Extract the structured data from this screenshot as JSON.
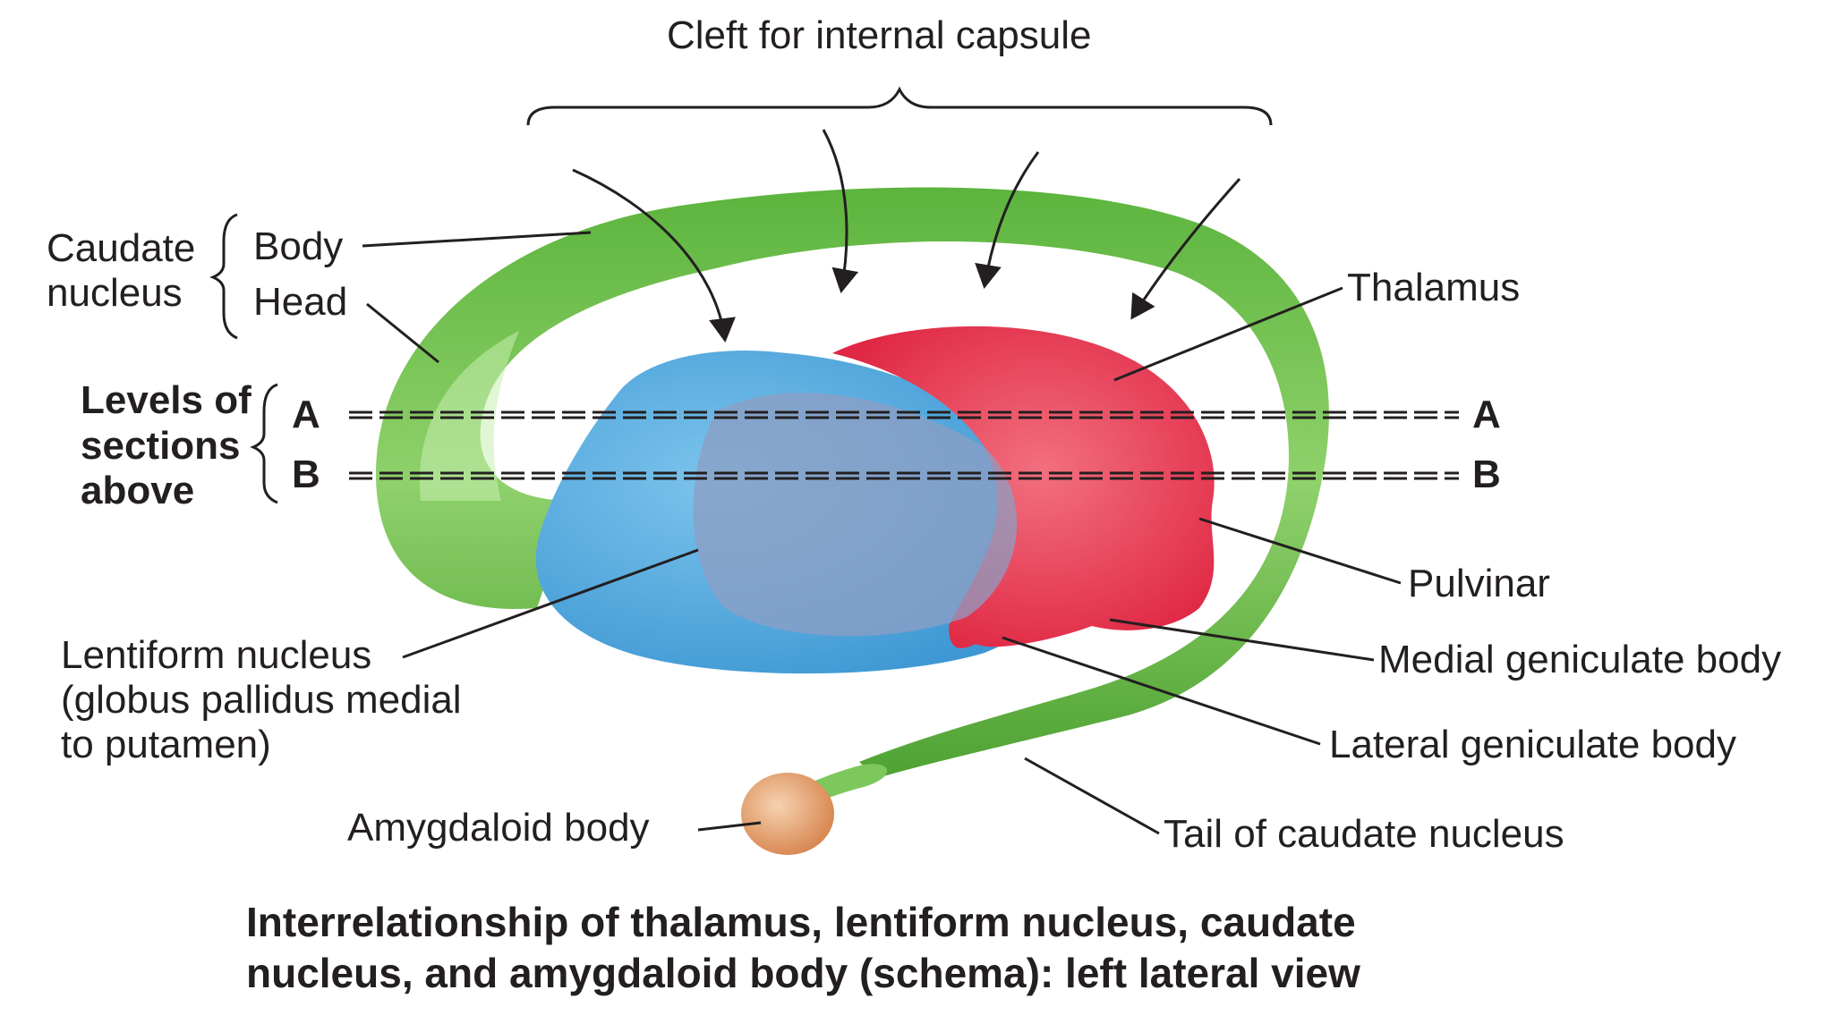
{
  "colors": {
    "caudate": "#6fc24f",
    "caudate_light": "#b6e39a",
    "thalamus": "#e8344d",
    "thalamus_light": "#f3727f",
    "lentiform": "#4ea8dc",
    "lentiform_overlap": "#8c9ec2",
    "amygdala": "#e8a877",
    "line": "#231f20"
  },
  "labels": {
    "cleft": "Cleft for internal capsule",
    "caudate_line1": "Caudate",
    "caudate_line2": "nucleus",
    "body": "Body",
    "head": "Head",
    "levels_line1": "Levels of",
    "levels_line2": "sections",
    "levels_line3": "above",
    "level_a": "A",
    "level_b": "B",
    "thalamus": "Thalamus",
    "pulvinar": "Pulvinar",
    "medial_geniculate": "Medial geniculate body",
    "lateral_geniculate": "Lateral geniculate body",
    "lentiform_line1": "Lentiform nucleus",
    "lentiform_line2": "(globus pallidus medial",
    "lentiform_line3": "to putamen)",
    "amygdaloid": "Amygdaloid body",
    "tail": "Tail of caudate nucleus"
  },
  "caption": {
    "line1": "Interrelationship of thalamus, lentiform nucleus, caudate",
    "line2": "nucleus, and amygdaloid body (schema): left lateral view"
  }
}
